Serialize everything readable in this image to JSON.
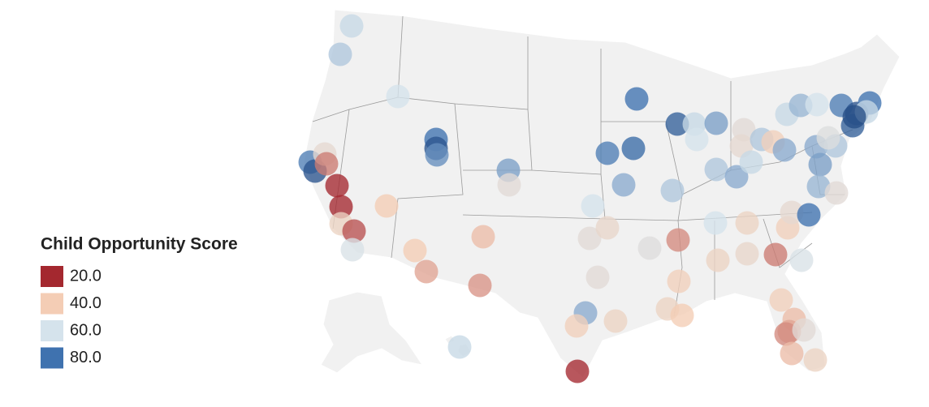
{
  "legend": {
    "title": "Child Opportunity Score",
    "items": [
      {
        "value": 20,
        "label": "20.0",
        "color": "#a4282f"
      },
      {
        "value": 40,
        "label": "40.0",
        "color": "#f4cdb5"
      },
      {
        "value": 60,
        "label": "60.0",
        "color": "#d5e3ec"
      },
      {
        "value": 80,
        "label": "80.0",
        "color": "#3f72af"
      }
    ]
  },
  "points": {
    "values": [
      62,
      65,
      60,
      78,
      88,
      50,
      30,
      20,
      18,
      45,
      25,
      58,
      40,
      80,
      88,
      75,
      72,
      52,
      40,
      35,
      38,
      33,
      62,
      20,
      70,
      42,
      45,
      60,
      52,
      48,
      52,
      54,
      80,
      78,
      82,
      70,
      65,
      85,
      62,
      60,
      72,
      32,
      42,
      45,
      40,
      60,
      45,
      65,
      70,
      52,
      50,
      62,
      65,
      42,
      70,
      45,
      48,
      30,
      42,
      50,
      80,
      58,
      42,
      38,
      35,
      32,
      52,
      38,
      45,
      62,
      68,
      60,
      78,
      88,
      80,
      85,
      62,
      70,
      65,
      55,
      72,
      68,
      52,
      90
    ]
  }
}
